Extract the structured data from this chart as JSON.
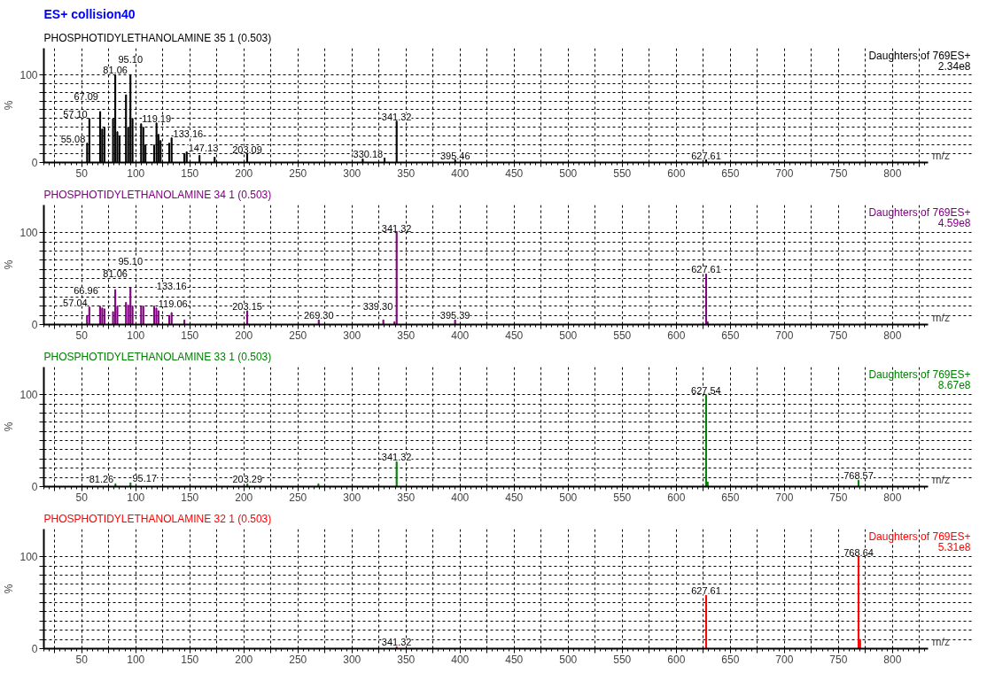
{
  "chart_data": [
    {
      "type": "bar",
      "title": "ES+ collision40",
      "subtitle": "PHOSPHOTIDYLETHANOLAMINE 35 1 (0.503)",
      "xlabel": "m/z",
      "ylabel": "%",
      "x": [
        55.08,
        57.1,
        67.09,
        69,
        71,
        79,
        81.06,
        83,
        85,
        91,
        93,
        95.1,
        97,
        105,
        107,
        109,
        117,
        119.19,
        121,
        123,
        131,
        133.16,
        145,
        147.13,
        159,
        173,
        203.09,
        310,
        330.18,
        341.32,
        395.46,
        627.61
      ],
      "series": [
        {
          "color": "#000000",
          "values": [
            22,
            50,
            58,
            38,
            40,
            50,
            100,
            35,
            30,
            77,
            40,
            100,
            50,
            44,
            40,
            20,
            20,
            45,
            32,
            25,
            22,
            28,
            10,
            12,
            8,
            6,
            10,
            4,
            5,
            47,
            3,
            3
          ]
        }
      ],
      "xlim": [
        15,
        833
      ],
      "ylim": [
        0,
        100
      ],
      "xticks": [
        {
          "value": 25,
          "label": null
        },
        50,
        {
          "value": 75,
          "label": null
        },
        100,
        {
          "value": 125,
          "label": null
        },
        150,
        {
          "value": 175,
          "label": null
        },
        200,
        {
          "value": 225,
          "label": null
        },
        250,
        {
          "value": 275,
          "label": null
        },
        300,
        {
          "value": 325,
          "label": null
        },
        350,
        {
          "value": 375,
          "label": null
        },
        400,
        {
          "value": 425,
          "label": null
        },
        450,
        {
          "value": 475,
          "label": null
        },
        500,
        {
          "value": 525,
          "label": null
        },
        550,
        {
          "value": 575,
          "label": null
        },
        600,
        {
          "value": 625,
          "label": null
        },
        650,
        {
          "value": 675,
          "label": null
        },
        700,
        {
          "value": 725,
          "label": null
        },
        750,
        {
          "value": 775,
          "label": null
        },
        800,
        {
          "value": 825,
          "label": null
        }
      ],
      "yticks": [
        0,
        {
          "value": 10,
          "label": null
        },
        {
          "value": 20,
          "label": null
        },
        {
          "value": 30,
          "label": null
        },
        {
          "value": 40,
          "label": null
        },
        {
          "value": 50,
          "label": null
        },
        {
          "value": 60,
          "label": null
        },
        {
          "value": 70,
          "label": null
        },
        {
          "value": 80,
          "label": null
        },
        {
          "value": 90,
          "label": null
        },
        100
      ],
      "grid": true,
      "annotations": [
        "Daughters of 769ES+",
        "2.34e8",
        {
          "text": "55.08",
          "x": 55.08,
          "y": 22
        },
        {
          "text": "57.10",
          "x": 57.1,
          "y": 50
        },
        {
          "text": "67.09",
          "x": 67.09,
          "y": 58
        },
        {
          "text": "81.06",
          "x": 81.06,
          "y": 100
        },
        {
          "text": "95.10",
          "x": 95.1,
          "y": 100
        },
        {
          "text": "119.19",
          "x": 119.19,
          "y": 45
        },
        {
          "text": "133.16",
          "x": 133.16,
          "y": 28
        },
        {
          "text": "147.13",
          "x": 147.13,
          "y": 12
        },
        {
          "text": "203.09",
          "x": 203.09,
          "y": 10
        },
        {
          "text": "330.18",
          "x": 330.18,
          "y": 5
        },
        {
          "text": "341.32",
          "x": 341.32,
          "y": 47
        },
        {
          "text": "395.46",
          "x": 395.46,
          "y": 3
        },
        {
          "text": "627.61",
          "x": 627.61,
          "y": 3
        }
      ]
    },
    {
      "type": "bar",
      "title": "PHOSPHOTIDYLETHANOLAMINE 34 1 (0.503)",
      "xlabel": "m/z",
      "ylabel": "%",
      "x": [
        55,
        57.04,
        66.96,
        69,
        71,
        79,
        81.06,
        83,
        91,
        93,
        95.1,
        97,
        105,
        107,
        117,
        119.06,
        121,
        131,
        133.16,
        145,
        203.15,
        269.3,
        329,
        339.3,
        341.32,
        395.39,
        627.61,
        629
      ],
      "series": [
        {
          "color": "#800080",
          "values": [
            10,
            19,
            20,
            18,
            17,
            14,
            38,
            20,
            24,
            21,
            40,
            20,
            20,
            20,
            20,
            18,
            15,
            10,
            13,
            5,
            15,
            5,
            5,
            3,
            100,
            5,
            55,
            3
          ]
        }
      ],
      "xlim": [
        15,
        833
      ],
      "ylim": [
        0,
        100
      ],
      "xticks": [
        {
          "value": 25,
          "label": null
        },
        50,
        {
          "value": 75,
          "label": null
        },
        100,
        {
          "value": 125,
          "label": null
        },
        150,
        {
          "value": 175,
          "label": null
        },
        200,
        {
          "value": 225,
          "label": null
        },
        250,
        {
          "value": 275,
          "label": null
        },
        300,
        {
          "value": 325,
          "label": null
        },
        350,
        {
          "value": 375,
          "label": null
        },
        400,
        {
          "value": 425,
          "label": null
        },
        450,
        {
          "value": 475,
          "label": null
        },
        500,
        {
          "value": 525,
          "label": null
        },
        550,
        {
          "value": 575,
          "label": null
        },
        600,
        {
          "value": 625,
          "label": null
        },
        650,
        {
          "value": 675,
          "label": null
        },
        700,
        {
          "value": 725,
          "label": null
        },
        750,
        {
          "value": 775,
          "label": null
        },
        800,
        {
          "value": 825,
          "label": null
        }
      ],
      "yticks": [
        0,
        {
          "value": 10,
          "label": null
        },
        {
          "value": 20,
          "label": null
        },
        {
          "value": 30,
          "label": null
        },
        {
          "value": 40,
          "label": null
        },
        {
          "value": 50,
          "label": null
        },
        {
          "value": 60,
          "label": null
        },
        {
          "value": 70,
          "label": null
        },
        {
          "value": 80,
          "label": null
        },
        {
          "value": 90,
          "label": null
        },
        100
      ],
      "grid": true,
      "annotations": [
        "Daughters of 769ES+",
        "4.59e8",
        {
          "text": "57.04",
          "x": 57.04,
          "y": 19
        },
        {
          "text": "66.96",
          "x": 66.96,
          "y": 20
        },
        {
          "text": "81.06",
          "x": 81.06,
          "y": 38
        },
        {
          "text": "95.10",
          "x": 95.1,
          "y": 40
        },
        {
          "text": "119.06",
          "x": 119.06,
          "y": 18
        },
        {
          "text": "133.16",
          "x": 133.16,
          "y": 13
        },
        {
          "text": "203.15",
          "x": 203.15,
          "y": 15
        },
        {
          "text": "269.30",
          "x": 269.3,
          "y": 5
        },
        {
          "text": "339.30",
          "x": 339.3,
          "y": 3
        },
        {
          "text": "341.32",
          "x": 341.32,
          "y": 100
        },
        {
          "text": "395.39",
          "x": 395.39,
          "y": 5
        },
        {
          "text": "627.61",
          "x": 627.61,
          "y": 55
        }
      ]
    },
    {
      "type": "bar",
      "title": "PHOSPHOTIDYLETHANOLAMINE 33 1 (0.503)",
      "xlabel": "m/z",
      "ylabel": "%",
      "x": [
        81.26,
        95.17,
        203.29,
        269,
        341.32,
        627.54,
        629,
        768.57
      ],
      "series": [
        {
          "color": "#008000",
          "values": [
            3,
            4,
            3,
            3,
            27,
            100,
            5,
            7
          ]
        }
      ],
      "xlim": [
        15,
        833
      ],
      "ylim": [
        0,
        100
      ],
      "xticks": [
        {
          "value": 25,
          "label": null
        },
        50,
        {
          "value": 75,
          "label": null
        },
        100,
        {
          "value": 125,
          "label": null
        },
        150,
        {
          "value": 175,
          "label": null
        },
        200,
        {
          "value": 225,
          "label": null
        },
        250,
        {
          "value": 275,
          "label": null
        },
        300,
        {
          "value": 325,
          "label": null
        },
        350,
        {
          "value": 375,
          "label": null
        },
        400,
        {
          "value": 425,
          "label": null
        },
        450,
        {
          "value": 475,
          "label": null
        },
        500,
        {
          "value": 525,
          "label": null
        },
        550,
        {
          "value": 575,
          "label": null
        },
        600,
        {
          "value": 625,
          "label": null
        },
        650,
        {
          "value": 675,
          "label": null
        },
        700,
        {
          "value": 725,
          "label": null
        },
        750,
        {
          "value": 775,
          "label": null
        },
        800,
        {
          "value": 825,
          "label": null
        }
      ],
      "yticks": [
        0,
        {
          "value": 10,
          "label": null
        },
        {
          "value": 20,
          "label": null
        },
        {
          "value": 30,
          "label": null
        },
        {
          "value": 40,
          "label": null
        },
        {
          "value": 50,
          "label": null
        },
        {
          "value": 60,
          "label": null
        },
        {
          "value": 70,
          "label": null
        },
        {
          "value": 80,
          "label": null
        },
        {
          "value": 90,
          "label": null
        },
        100
      ],
      "grid": true,
      "annotations": [
        "Daughters of 769ES+",
        "8.67e8",
        {
          "text": "81.26",
          "x": 81.26,
          "y": 3
        },
        {
          "text": "95.17",
          "x": 95.17,
          "y": 4
        },
        {
          "text": "203.29",
          "x": 203.29,
          "y": 3
        },
        {
          "text": "341.32",
          "x": 341.32,
          "y": 27
        },
        {
          "text": "627.54",
          "x": 627.54,
          "y": 100
        },
        {
          "text": "768.57",
          "x": 768.57,
          "y": 7
        }
      ]
    },
    {
      "type": "bar",
      "title": "PHOSPHOTIDYLETHANOLAMINE 32 1 (0.503)",
      "xlabel": "m/z",
      "ylabel": "%",
      "x": [
        341.32,
        627.61,
        768.64,
        770
      ],
      "series": [
        {
          "color": "#ff0000",
          "values": [
            2,
            58,
            100,
            10
          ]
        }
      ],
      "xlim": [
        15,
        833
      ],
      "ylim": [
        0,
        100
      ],
      "xticks": [
        {
          "value": 25,
          "label": null
        },
        50,
        {
          "value": 75,
          "label": null
        },
        100,
        {
          "value": 125,
          "label": null
        },
        150,
        {
          "value": 175,
          "label": null
        },
        200,
        {
          "value": 225,
          "label": null
        },
        250,
        {
          "value": 275,
          "label": null
        },
        300,
        {
          "value": 325,
          "label": null
        },
        350,
        {
          "value": 375,
          "label": null
        },
        400,
        {
          "value": 425,
          "label": null
        },
        450,
        {
          "value": 475,
          "label": null
        },
        500,
        {
          "value": 525,
          "label": null
        },
        550,
        {
          "value": 575,
          "label": null
        },
        600,
        {
          "value": 625,
          "label": null
        },
        650,
        {
          "value": 675,
          "label": null
        },
        700,
        {
          "value": 725,
          "label": null
        },
        750,
        {
          "value": 775,
          "label": null
        },
        800,
        {
          "value": 825,
          "label": null
        }
      ],
      "yticks": [
        0,
        {
          "value": 10,
          "label": null
        },
        {
          "value": 20,
          "label": null
        },
        {
          "value": 30,
          "label": null
        },
        {
          "value": 40,
          "label": null
        },
        {
          "value": 50,
          "label": null
        },
        {
          "value": 60,
          "label": null
        },
        {
          "value": 70,
          "label": null
        },
        {
          "value": 80,
          "label": null
        },
        {
          "value": 90,
          "label": null
        },
        100
      ],
      "grid": true,
      "annotations": [
        "Daughters of 769ES+",
        "5.31e8",
        {
          "text": "341.32",
          "x": 341.32,
          "y": 2
        },
        {
          "text": "627.61",
          "x": 627.61,
          "y": 58
        },
        {
          "text": "768.64",
          "x": 768.64,
          "y": 100
        }
      ]
    }
  ]
}
